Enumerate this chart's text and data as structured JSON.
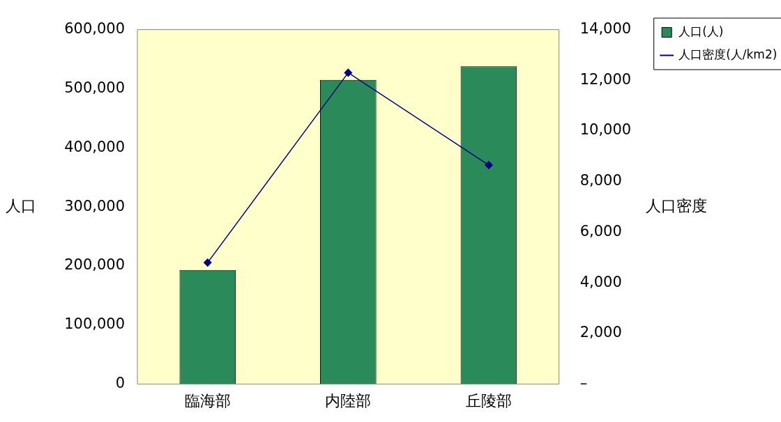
{
  "chart_data": {
    "type": "bar",
    "categories": [
      "臨海部",
      "内陸部",
      "丘陵部"
    ],
    "ylabel": "人口",
    "y2label": "人口密度",
    "series": [
      {
        "name": "人口(人)",
        "color": "#2a8a5a",
        "values": [
          193000,
          515000,
          538000
        ]
      },
      {
        "name": "人口密度(人/km2)",
        "type": "line",
        "axis": "y2",
        "color": "#000080",
        "marker": "diamond",
        "values": [
          4800,
          12300,
          8650
        ]
      }
    ],
    "ylim": [
      0,
      600000
    ],
    "yticks": [
      0,
      {
        "value": 100000,
        "label": "100,000"
      },
      {
        "value": 200000,
        "label": "200,000"
      },
      {
        "value": 300000,
        "label": "300,000"
      },
      {
        "value": 400000,
        "label": "400,000"
      },
      {
        "value": 500000,
        "label": "500,000"
      },
      {
        "value": 600000,
        "label": "600,000"
      }
    ],
    "y2lim": [
      0,
      14000
    ],
    "y2ticks": [
      {
        "value": 0,
        "label": "–"
      },
      {
        "value": 2000,
        "label": "2,000"
      },
      {
        "value": 4000,
        "label": "4,000"
      },
      {
        "value": 6000,
        "label": "6,000"
      },
      {
        "value": 8000,
        "label": "8,000"
      },
      {
        "value": 10000,
        "label": "10,000"
      },
      {
        "value": 12000,
        "label": "12,000"
      },
      {
        "value": 14000,
        "label": "14,000"
      }
    ],
    "grid": false,
    "legend": "top right"
  }
}
